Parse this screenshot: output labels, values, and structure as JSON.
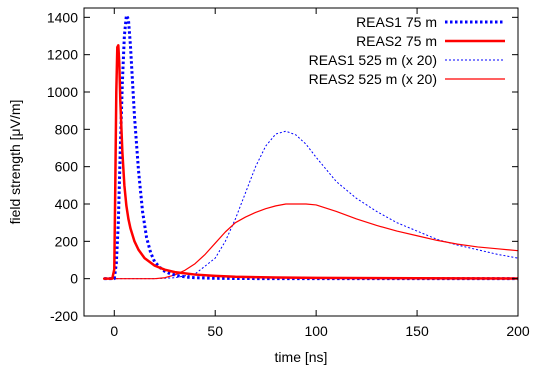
{
  "chart_data": {
    "type": "line",
    "title": "",
    "xlabel": "time [ns]",
    "ylabel": "field strength [μV/m]",
    "xlim": [
      -15,
      200
    ],
    "ylim": [
      -200,
      1450
    ],
    "x_ticks": [
      0,
      50,
      100,
      150,
      200
    ],
    "y_ticks": [
      -200,
      0,
      200,
      400,
      600,
      800,
      1000,
      1200,
      1400
    ],
    "x_tick_labels": [
      "0",
      "50",
      "100",
      "150",
      "200"
    ],
    "y_tick_labels": [
      "-200",
      "0",
      "200",
      "400",
      "600",
      "800",
      "1000",
      "1200",
      "1400"
    ],
    "grid": false,
    "legend_position": "top-right",
    "series": [
      {
        "name": "REAS1 75 m",
        "color": "#0000ff",
        "style": "dotted-thick",
        "x": [
          -5,
          0,
          1,
          2,
          3,
          4,
          5,
          6,
          7,
          8,
          9,
          10,
          12,
          14,
          16,
          18,
          20,
          24,
          28,
          32,
          36,
          40,
          50,
          60,
          80,
          100,
          150,
          200
        ],
        "y": [
          0,
          0,
          80,
          300,
          700,
          1050,
          1300,
          1410,
          1390,
          1250,
          1060,
          870,
          580,
          360,
          220,
          140,
          90,
          45,
          25,
          15,
          8,
          5,
          2,
          1,
          0,
          0,
          0,
          0
        ]
      },
      {
        "name": "REAS2 75 m",
        "color": "#ff0000",
        "style": "solid-thick",
        "x": [
          -5,
          -1,
          0,
          0.5,
          1,
          1.5,
          2,
          2.5,
          3,
          4,
          5,
          6,
          7,
          8,
          10,
          12,
          15,
          20,
          25,
          30,
          40,
          50,
          60,
          80,
          100,
          150,
          200
        ],
        "y": [
          0,
          0,
          50,
          500,
          1000,
          1240,
          1250,
          1150,
          950,
          680,
          500,
          390,
          320,
          270,
          200,
          155,
          110,
          70,
          48,
          35,
          22,
          15,
          10,
          6,
          4,
          2,
          1
        ]
      },
      {
        "name": "REAS1 525 m (x 20)",
        "color": "#0000ff",
        "style": "dotted-thin",
        "x": [
          -5,
          20,
          30,
          40,
          50,
          55,
          60,
          65,
          70,
          75,
          80,
          85,
          90,
          95,
          100,
          110,
          120,
          130,
          140,
          150,
          160,
          170,
          180,
          190,
          200
        ],
        "y": [
          0,
          0,
          5,
          25,
          110,
          200,
          320,
          460,
          600,
          710,
          775,
          790,
          770,
          720,
          650,
          520,
          430,
          360,
          300,
          255,
          210,
          180,
          155,
          130,
          110
        ]
      },
      {
        "name": "REAS2 525 m (x 20)",
        "color": "#ff0000",
        "style": "solid-thin",
        "x": [
          -5,
          20,
          25,
          30,
          35,
          40,
          45,
          50,
          55,
          60,
          65,
          70,
          75,
          80,
          85,
          90,
          95,
          100,
          110,
          120,
          130,
          140,
          150,
          160,
          170,
          180,
          190,
          200
        ],
        "y": [
          0,
          0,
          5,
          20,
          45,
          80,
          130,
          190,
          250,
          300,
          330,
          355,
          375,
          390,
          400,
          400,
          400,
          395,
          360,
          320,
          285,
          255,
          230,
          205,
          185,
          170,
          160,
          150
        ]
      }
    ]
  }
}
